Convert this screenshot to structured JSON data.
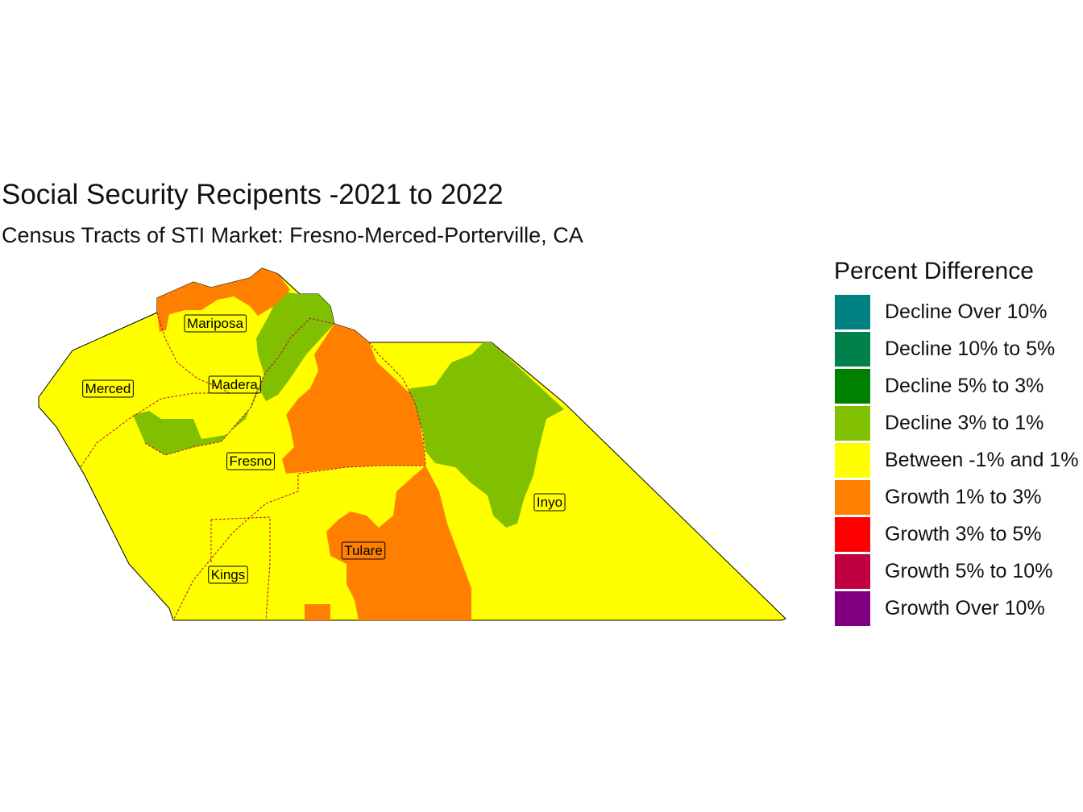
{
  "title": "Social Security Recipents -2021 to 2022",
  "subtitle": "Census Tracts of STI Market: Fresno-Merced-Porterville, CA",
  "legend": {
    "title": "Percent Difference",
    "items": [
      {
        "label": "Decline Over 10%",
        "color": "#008080"
      },
      {
        "label": "Decline 10% to 5%",
        "color": "#00804a"
      },
      {
        "label": "Decline 5% to 3%",
        "color": "#008000"
      },
      {
        "label": "Decline 3% to 1%",
        "color": "#80c000"
      },
      {
        "label": "Between -1% and 1%",
        "color": "#ffff00"
      },
      {
        "label": "Growth 1% to 3%",
        "color": "#ff8000"
      },
      {
        "label": "Growth 3% to 5%",
        "color": "#ff0000"
      },
      {
        "label": "Growth 5% to 10%",
        "color": "#c00040"
      },
      {
        "label": "Growth Over 10%",
        "color": "#800080"
      }
    ]
  },
  "counties": [
    {
      "name": "Mariposa"
    },
    {
      "name": "Merced"
    },
    {
      "name": "Madera"
    },
    {
      "name": "Fresno"
    },
    {
      "name": "Inyo"
    },
    {
      "name": "Tulare"
    },
    {
      "name": "Kings"
    }
  ]
}
